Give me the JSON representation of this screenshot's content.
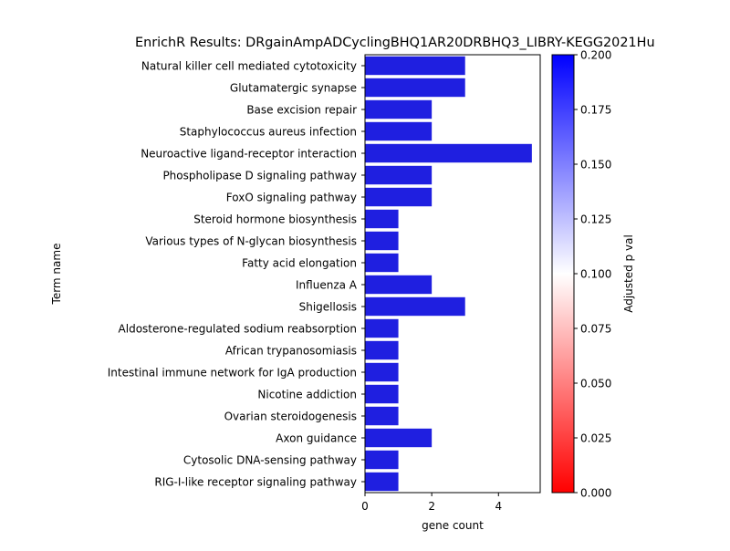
{
  "chart_data": {
    "type": "bar",
    "orientation": "horizontal",
    "title": "EnrichR Results: DRgainAmpADCyclingBHQ1AR20DRBHQ3_LIBRY-KEGG2021Hu",
    "xlabel": "gene count",
    "ylabel": "Term name",
    "xlim": [
      0,
      5.25
    ],
    "xticks": [
      0,
      2,
      4
    ],
    "grid": false,
    "legend": "none",
    "categories": [
      "Natural killer cell mediated cytotoxicity",
      "Glutamatergic synapse",
      "Base excision repair",
      "Staphylococcus aureus infection",
      "Neuroactive ligand-receptor interaction",
      "Phospholipase D signaling pathway",
      "FoxO signaling pathway",
      "Steroid hormone biosynthesis",
      "Various types of N-glycan biosynthesis",
      "Fatty acid elongation",
      "Influenza A",
      "Shigellosis",
      "Aldosterone-regulated sodium reabsorption",
      "African trypanosomiasis",
      "Intestinal immune network for IgA production",
      "Nicotine addiction",
      "Ovarian steroidogenesis",
      "Axon guidance",
      "Cytosolic DNA-sensing pathway",
      "RIG-I-like receptor signaling pathway"
    ],
    "values": [
      3,
      3,
      2,
      2,
      5,
      2,
      2,
      1,
      1,
      1,
      2,
      3,
      1,
      1,
      1,
      1,
      1,
      2,
      1,
      1
    ],
    "bar_color": "#1f1fe0",
    "colorbar": {
      "label": "Adjusted p val",
      "range": [
        0,
        0.2
      ],
      "ticks": [
        "0.000",
        "0.025",
        "0.050",
        "0.075",
        "0.100",
        "0.125",
        "0.150",
        "0.175",
        "0.200"
      ],
      "colors": [
        "#ff0000",
        "#ffffff",
        "#0000ff"
      ]
    }
  }
}
